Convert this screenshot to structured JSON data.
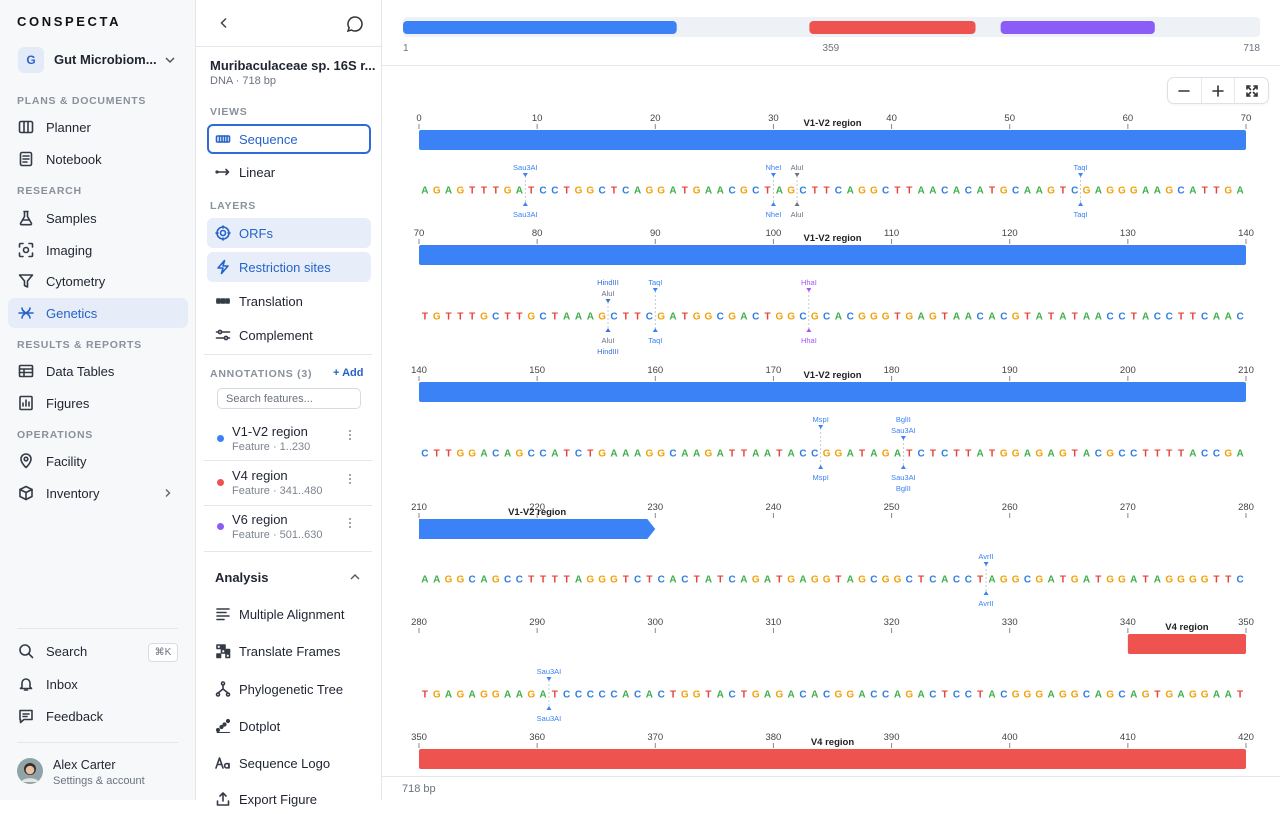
{
  "app": {
    "brand": "CONSPECTA",
    "workspace_initial": "G",
    "workspace": "Gut Microbiom...",
    "nav": [
      {
        "section": "PLANS & DOCUMENTS",
        "items": [
          "Planner",
          "Notebook"
        ]
      },
      {
        "section": "RESEARCH",
        "items": [
          "Samples",
          "Imaging",
          "Cytometry",
          "Genetics"
        ]
      },
      {
        "section": "RESULTS & REPORTS",
        "items": [
          "Data Tables",
          "Figures"
        ]
      },
      {
        "section": "OPERATIONS",
        "items": [
          "Facility",
          "Inventory"
        ]
      }
    ],
    "footer": {
      "search": "Search",
      "shortcut": "⌘K",
      "inbox": "Inbox",
      "feedback": "Feedback"
    },
    "user": {
      "name": "Alex Carter",
      "subtitle": "Settings & account"
    }
  },
  "panel": {
    "title": "Muribaculaceae sp. 16S r...",
    "subtitle": "DNA · 718 bp",
    "views_label": "VIEWS",
    "views": [
      "Sequence",
      "Linear"
    ],
    "layers_label": "LAYERS",
    "layers": [
      "ORFs",
      "Restriction sites",
      "Translation",
      "Complement"
    ],
    "annotations_label": "ANNOTATIONS (3)",
    "add": "+ Add",
    "search_placeholder": "Search features...",
    "analysis_label": "Analysis",
    "analysis": [
      "Multiple Alignment",
      "Translate Frames",
      "Phylogenetic Tree",
      "Dotplot",
      "Sequence Logo",
      "Export Figure"
    ]
  },
  "sequence": {
    "length": 718,
    "length_label": "718 bp",
    "overview_ticks": [
      1,
      359,
      718
    ],
    "base_colors": {
      "A": "#3dae4a",
      "C": "#2f7de1",
      "G": "#f0a20c",
      "T": "#e5433b"
    },
    "features": [
      {
        "name": "V1-V2 region",
        "description": "Feature · 1..230",
        "start": 1,
        "end": 230,
        "color": "#3b82f6"
      },
      {
        "name": "V4 region",
        "description": "Feature · 341..480",
        "start": 341,
        "end": 480,
        "color": "#ef5350"
      },
      {
        "name": "V6 region",
        "description": "Feature · 501..630",
        "start": 501,
        "end": 630,
        "color": "#8b5cf6"
      }
    ],
    "rows": [
      {
        "ticks": [
          0,
          10,
          20,
          30,
          40,
          50,
          60,
          70
        ],
        "bases": "AGAGTTTGATCCTGGCTCAGGATGAACGCTAGCTTCAGGCTTAACACATGCAAGTCGAGGGAAGCATTGA",
        "sites": [
          {
            "name": "Sau3AI",
            "pos": 9,
            "color": "#3b82f6"
          },
          {
            "name": "NheI",
            "pos": 30,
            "color": "#3b82f6"
          },
          {
            "name": "AluI",
            "pos": 32,
            "color": "#6b7280"
          },
          {
            "name": "TaqI",
            "pos": 56,
            "color": "#3b82f6"
          }
        ]
      },
      {
        "ticks": [
          70,
          80,
          90,
          100,
          110,
          120,
          130,
          140
        ],
        "bases": "TGTTTGCTTGCTAAAGCTTCGATGGCGACTGGCGCACGGGTGAGTAACACGTATATAACCTACCTTCAAC",
        "sites": [
          {
            "name": "HindIII",
            "pos": 86,
            "color": "#3b6fd6"
          },
          {
            "name": "AluI",
            "pos": 86,
            "color": "#6b7280"
          },
          {
            "name": "TaqI",
            "pos": 90,
            "color": "#3b82f6"
          },
          {
            "name": "HhaI",
            "pos": 103,
            "color": "#a855f7"
          }
        ]
      },
      {
        "ticks": [
          140,
          150,
          160,
          170,
          180,
          190,
          200,
          210
        ],
        "bases": "CTTGGACAGCCATCTGAAAGGCAAGATTAATACCGGATAGATCTCTTATGGAGAGTACGCCTTTTACCGA",
        "sites": [
          {
            "name": "MspI",
            "pos": 174,
            "color": "#3b82f6"
          },
          {
            "name": "BglII",
            "pos": 181,
            "color": "#3b82f6"
          },
          {
            "name": "Sau3AI",
            "pos": 181,
            "color": "#3b82f6"
          }
        ]
      },
      {
        "ticks": [
          210,
          220,
          230,
          240,
          250,
          260,
          270,
          280
        ],
        "bases": "AAGGCAGCCTTTTAGGGTCTCACTATCAGATGAGGTAGCGGCTCACCTAGGCGATGATGGATAGGGGTTC",
        "sites": [
          {
            "name": "AvrII",
            "pos": 258,
            "color": "#3b82f6"
          }
        ]
      },
      {
        "ticks": [
          280,
          290,
          300,
          310,
          320,
          330,
          340,
          350
        ],
        "bases": "TGAGAGGAAGATCCCCCACACTGGTACTGAGACACGGACCAGACTCCTACGGGAGGCAGCAGTGAGGAAT",
        "sites": [
          {
            "name": "Sau3AI",
            "pos": 291,
            "color": "#3b82f6"
          }
        ]
      },
      {
        "ticks": [
          350,
          360,
          370,
          380,
          390,
          400,
          410,
          420
        ],
        "sites": []
      }
    ]
  }
}
